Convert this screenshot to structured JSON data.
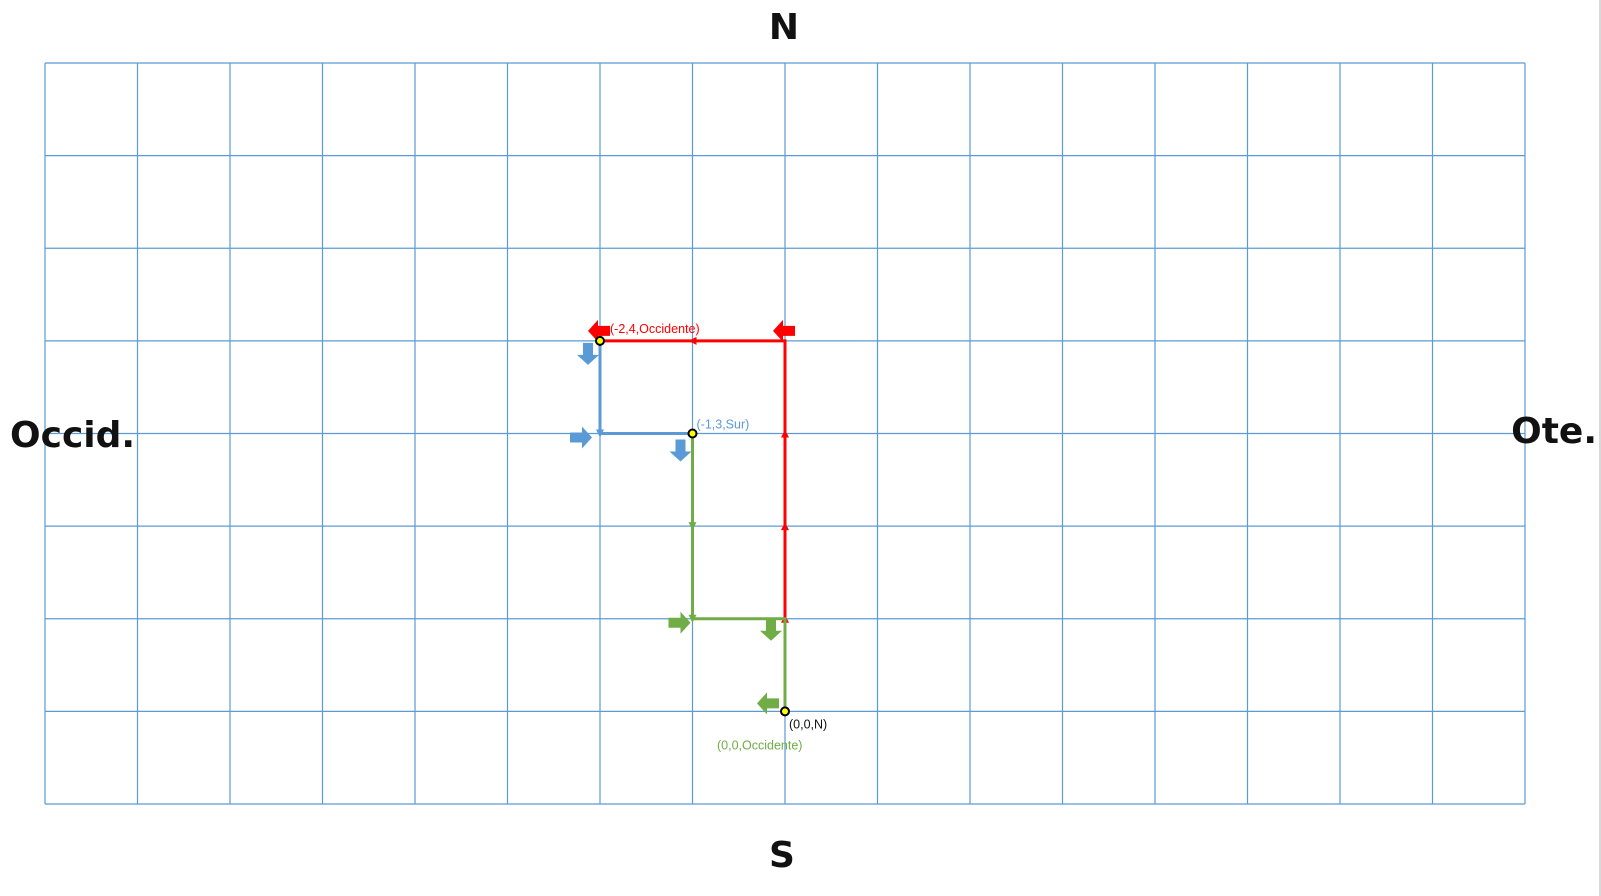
{
  "compass": {
    "north": "N",
    "south": "S",
    "west": "Occid.",
    "east": "Ote."
  },
  "grid": {
    "columns": 16,
    "rows": 8,
    "color": "#5b9bd5"
  },
  "paths": [
    {
      "id": "red-path",
      "color": "#ff0000",
      "points": [
        [
          0,
          0
        ],
        [
          0,
          4
        ],
        [
          -2,
          4
        ]
      ],
      "arrow_marks": [
        [
          0,
          1
        ],
        [
          0,
          2
        ],
        [
          0,
          3
        ],
        [
          -1,
          4
        ]
      ],
      "heading_arrows": [
        {
          "pos": [
            0,
            4
          ],
          "dir": "west"
        },
        {
          "pos": [
            -2,
            4
          ],
          "dir": "west"
        }
      ],
      "label": "(-2,4,Occidente)",
      "label_at": [
        -2,
        4
      ]
    },
    {
      "id": "blue-path",
      "color": "#5b9bd5",
      "points": [
        [
          -2,
          4
        ],
        [
          -2,
          3
        ],
        [
          -1,
          3
        ]
      ],
      "arrow_marks": [
        [
          -2,
          3
        ]
      ],
      "heading_arrows": [
        {
          "pos": [
            -2,
            4
          ],
          "dir": "south"
        },
        {
          "pos": [
            -2,
            3
          ],
          "dir": "east"
        },
        {
          "pos": [
            -1,
            3
          ],
          "dir": "south"
        }
      ],
      "label": "(-1,3,Sur)",
      "label_at": [
        -1,
        3
      ]
    },
    {
      "id": "green-path",
      "color": "#70ad47",
      "points": [
        [
          -1,
          3
        ],
        [
          -1,
          1
        ],
        [
          0,
          1
        ],
        [
          0,
          0
        ]
      ],
      "arrow_marks": [
        [
          -1,
          2
        ],
        [
          -1,
          1
        ]
      ],
      "heading_arrows": [
        {
          "pos": [
            -1,
            1
          ],
          "dir": "east"
        },
        {
          "pos": [
            0,
            1
          ],
          "dir": "south"
        },
        {
          "pos": [
            0,
            0
          ],
          "dir": "west"
        }
      ],
      "label": "(0,0,Occidente)",
      "label_at": [
        0,
        0
      ]
    }
  ],
  "points_marked": [
    [
      0,
      0
    ],
    [
      -1,
      3
    ],
    [
      -2,
      4
    ]
  ],
  "origin_label": "(0,0,N)"
}
